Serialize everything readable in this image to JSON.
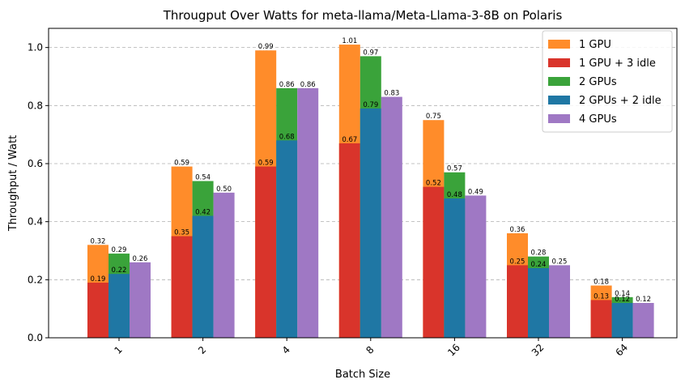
{
  "chart_data": {
    "type": "bar",
    "title": "Througput Over Watts for meta-llama/Meta-Llama-3-8B on Polaris",
    "xlabel": "Batch Size",
    "ylabel": "Throughput / Watt",
    "categories": [
      "1",
      "2",
      "4",
      "8",
      "16",
      "32",
      "64"
    ],
    "ylim": [
      0,
      1.066
    ],
    "yticks": [
      "0.0",
      "0.2",
      "0.4",
      "0.6",
      "0.8",
      "1.0"
    ],
    "grid": "horizontal dashed",
    "legend_position": "top-right",
    "series": [
      {
        "name": "1 GPU",
        "color": "#ff8c2a",
        "values": [
          0.32,
          0.59,
          0.99,
          1.01,
          0.75,
          0.36,
          0.18
        ]
      },
      {
        "name": "1 GPU + 3 idle",
        "color": "#d9342b",
        "values": [
          0.19,
          0.35,
          0.59,
          0.67,
          0.52,
          0.25,
          0.13
        ]
      },
      {
        "name": "2 GPUs",
        "color": "#3aa33a",
        "values": [
          0.29,
          0.54,
          0.86,
          0.97,
          0.57,
          0.28,
          0.14
        ]
      },
      {
        "name": "2 GPUs + 2 idle",
        "color": "#1f77a4",
        "values": [
          0.22,
          0.42,
          0.68,
          0.79,
          0.48,
          0.24,
          0.12
        ]
      },
      {
        "name": "4 GPUs",
        "color": "#9f78c4",
        "values": [
          0.26,
          0.5,
          0.86,
          0.83,
          0.49,
          0.25,
          0.12
        ]
      }
    ],
    "labels": {
      "1 GPU": [
        "0.32",
        "0.59",
        "0.99",
        "1.01",
        "0.75",
        "0.36",
        "0.18"
      ],
      "1 GPU + 3 idle": [
        "0.19",
        "0.35",
        "0.59",
        "0.67",
        "0.52",
        "0.25",
        "0.13"
      ],
      "2 GPUs": [
        "0.29",
        "0.54",
        "0.86",
        "0.97",
        "0.57",
        "0.28",
        "0.14"
      ],
      "2 GPUs + 2 idle": [
        "0.22",
        "0.42",
        "0.68",
        "0.79",
        "0.48",
        "0.24",
        "0.12"
      ],
      "4 GPUs": [
        "0.26",
        "0.50",
        "0.86",
        "0.83",
        "0.49",
        "0.25",
        "0.12"
      ]
    }
  }
}
